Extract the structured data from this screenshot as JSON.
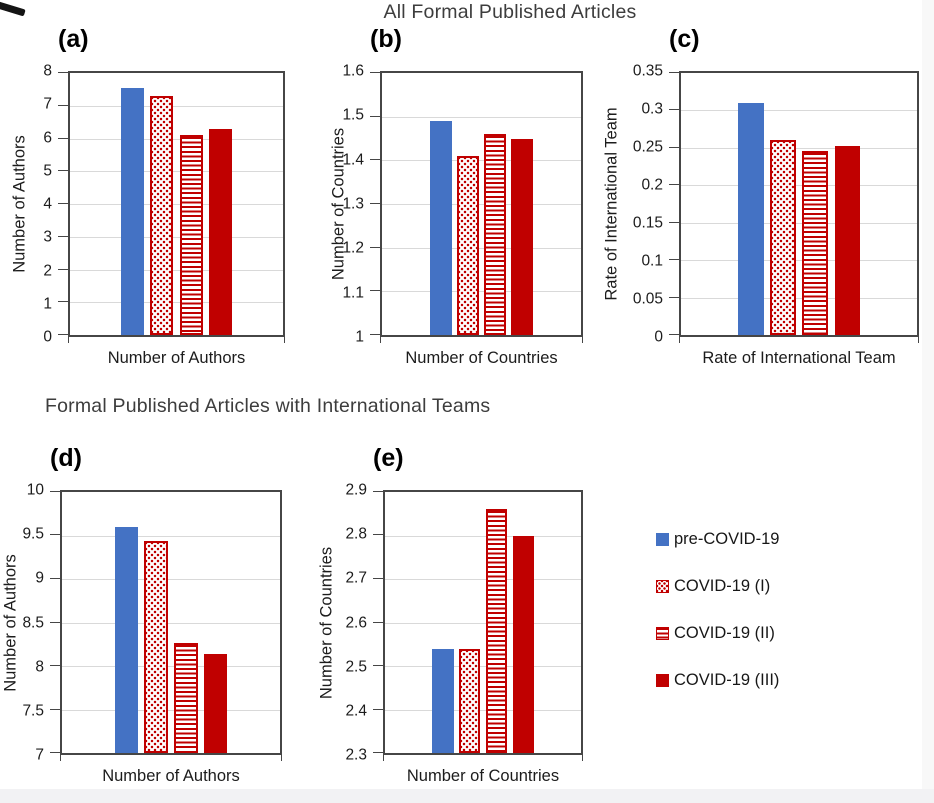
{
  "figure": {
    "top_section_title": "All Formal Published Articles",
    "bottom_section_title": "Formal Published Articles with International Teams"
  },
  "colors": {
    "blue": "#4472C4",
    "red": "#C00000",
    "axis": "#464646",
    "gridline": "#D9D9D9"
  },
  "legend": {
    "position": "right of bottom row",
    "items": [
      {
        "label": "pre-COVID-19",
        "swatch": "blue-solid"
      },
      {
        "label": "COVID-19 (I)",
        "swatch": "red-dotted"
      },
      {
        "label": "COVID-19 (II)",
        "swatch": "red-striped"
      },
      {
        "label": "COVID-19 (III)",
        "swatch": "red-solid"
      }
    ]
  },
  "chart_data": [
    {
      "id": "a",
      "type": "bar",
      "panel_label": "(a)",
      "section": "All Formal Published Articles",
      "categories": [
        "Number of Authors"
      ],
      "xlabel": "Number of Authors",
      "ylabel": "Number of Authors",
      "ylim": [
        0,
        8
      ],
      "yticks": [
        8,
        7,
        6,
        5,
        4,
        3,
        2,
        1,
        0
      ],
      "grid": true,
      "legend_position": "none",
      "series": [
        {
          "name": "pre-COVID-19",
          "value": 7.55
        },
        {
          "name": "COVID-19 (I)",
          "value": 7.3
        },
        {
          "name": "COVID-19 (II)",
          "value": 6.1
        },
        {
          "name": "COVID-19 (III)",
          "value": 6.3
        }
      ]
    },
    {
      "id": "b",
      "type": "bar",
      "panel_label": "(b)",
      "section": "All Formal Published Articles",
      "categories": [
        "Number of Countries"
      ],
      "xlabel": "Number of Countries",
      "ylabel": "Number of Countries",
      "ylim": [
        1,
        1.6
      ],
      "yticks": [
        1.6,
        1.5,
        1.4,
        1.3,
        1.2,
        1.1,
        1
      ],
      "grid": true,
      "legend_position": "none",
      "series": [
        {
          "name": "pre-COVID-19",
          "value": 1.49
        },
        {
          "name": "COVID-19 (I)",
          "value": 1.41
        },
        {
          "name": "COVID-19 (II)",
          "value": 1.46
        },
        {
          "name": "COVID-19 (III)",
          "value": 1.45
        }
      ]
    },
    {
      "id": "c",
      "type": "bar",
      "panel_label": "(c)",
      "section": "All Formal Published Articles",
      "categories": [
        "Rate of International Team"
      ],
      "xlabel": "Rate of International Team",
      "ylabel": "Rate of International Team",
      "ylim": [
        0,
        0.35
      ],
      "yticks": [
        0.35,
        0.3,
        0.25,
        0.2,
        0.15,
        0.1,
        0.05,
        0
      ],
      "grid": true,
      "legend_position": "none",
      "series": [
        {
          "name": "pre-COVID-19",
          "value": 0.31
        },
        {
          "name": "COVID-19 (I)",
          "value": 0.26
        },
        {
          "name": "COVID-19 (II)",
          "value": 0.246
        },
        {
          "name": "COVID-19 (III)",
          "value": 0.252
        }
      ]
    },
    {
      "id": "d",
      "type": "bar",
      "panel_label": "(d)",
      "section": "Formal Published Articles with International Teams",
      "categories": [
        "Number of Authors"
      ],
      "xlabel": "Number of Authors",
      "ylabel": "Number of Authors",
      "ylim": [
        7,
        10
      ],
      "yticks": [
        10,
        9.5,
        9,
        8.5,
        8,
        7.5,
        7
      ],
      "grid": true,
      "legend_position": "none",
      "series": [
        {
          "name": "pre-COVID-19",
          "value": 9.6
        },
        {
          "name": "COVID-19 (I)",
          "value": 9.44
        },
        {
          "name": "COVID-19 (II)",
          "value": 8.26
        },
        {
          "name": "COVID-19 (III)",
          "value": 8.14
        }
      ]
    },
    {
      "id": "e",
      "type": "bar",
      "panel_label": "(e)",
      "section": "Formal Published Articles with International Teams",
      "categories": [
        "Number of Countries"
      ],
      "xlabel": "Number of Countries",
      "ylabel": "Number of Countries",
      "ylim": [
        2.3,
        2.9
      ],
      "yticks": [
        2.9,
        2.8,
        2.7,
        2.6,
        2.5,
        2.4,
        2.3
      ],
      "grid": true,
      "legend_position": "none",
      "series": [
        {
          "name": "pre-COVID-19",
          "value": 2.54
        },
        {
          "name": "COVID-19 (I)",
          "value": 2.54
        },
        {
          "name": "COVID-19 (II)",
          "value": 2.86
        },
        {
          "name": "COVID-19 (III)",
          "value": 2.8
        }
      ]
    }
  ]
}
